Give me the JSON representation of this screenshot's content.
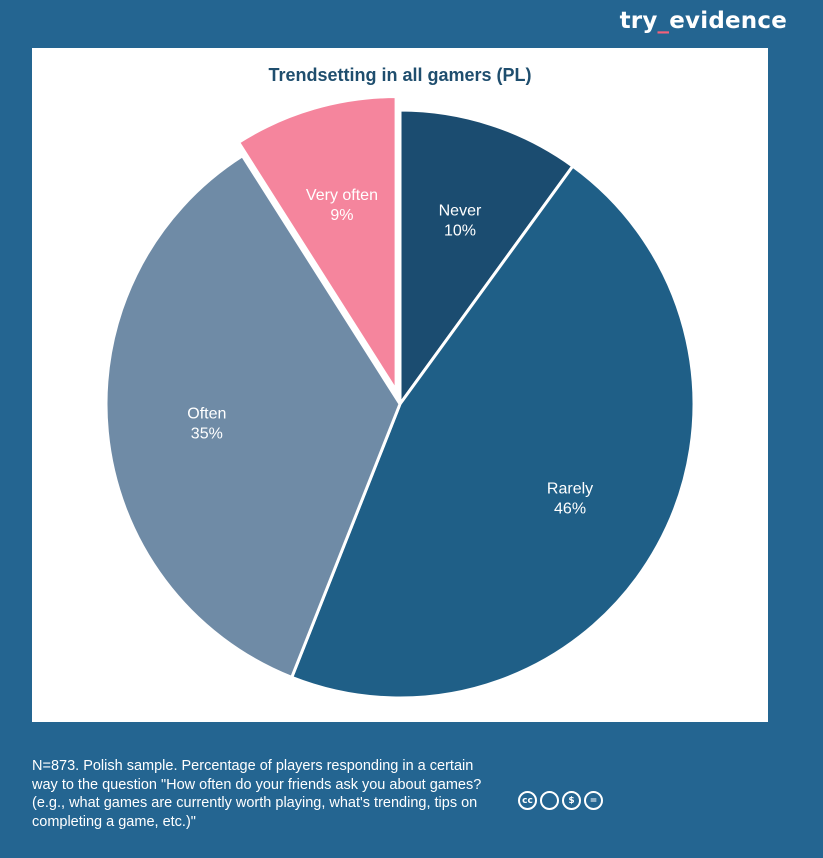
{
  "brand": {
    "left": "try",
    "separator": "_",
    "right": "evidence"
  },
  "chart_data": {
    "type": "pie",
    "title": "Trendsetting in all gamers (PL)",
    "slices": [
      {
        "label": "Never",
        "value": 10,
        "display": "10%",
        "color": "#1b4c70",
        "exploded": false
      },
      {
        "label": "Rarely",
        "value": 46,
        "display": "46%",
        "color": "#1f5f87",
        "exploded": false
      },
      {
        "label": "Often",
        "value": 35,
        "display": "35%",
        "color": "#6f8ba6",
        "exploded": false
      },
      {
        "label": "Very often",
        "value": 9,
        "display": "9%",
        "color": "#f5859d",
        "exploded": true
      }
    ],
    "start_angle": "12 o'clock",
    "direction": "clockwise"
  },
  "footnote": "N=873. Polish sample. Percentage of players responding in a certain way to the question \"How often do your friends ask you about games? (e.g., what games are currently worth playing, what's trending, tips on completing a game, etc.)\"",
  "license_icons": [
    {
      "name": "cc-icon",
      "glyph": "cc"
    },
    {
      "name": "attribution-icon",
      "glyph": " "
    },
    {
      "name": "noncommercial-icon",
      "glyph": "$"
    },
    {
      "name": "noderivatives-icon",
      "glyph": "="
    }
  ]
}
